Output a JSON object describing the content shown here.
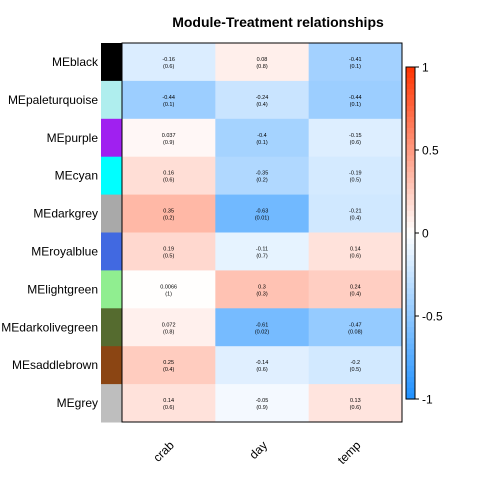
{
  "chart_data": {
    "type": "heatmap",
    "title": "Module-Treatment relationships",
    "xlabel": "",
    "ylabel": "",
    "columns": [
      "crab",
      "day",
      "temp"
    ],
    "rows": [
      {
        "name": "MEblack",
        "color": "#000000",
        "cells": [
          {
            "r": -0.16,
            "p": "(0.6)"
          },
          {
            "r": 0.08,
            "p": "(0.8)"
          },
          {
            "r": -0.41,
            "p": "(0.1)"
          }
        ]
      },
      {
        "name": "MEpaleturquoise",
        "color": "#AFEEEE",
        "cells": [
          {
            "r": -0.44,
            "p": "(0.1)"
          },
          {
            "r": -0.24,
            "p": "(0.4)"
          },
          {
            "r": -0.44,
            "p": "(0.1)"
          }
        ]
      },
      {
        "name": "MEpurple",
        "color": "#A020F0",
        "cells": [
          {
            "r": 0.037,
            "p": "(0.9)"
          },
          {
            "r": -0.4,
            "p": "(0.1)"
          },
          {
            "r": -0.15,
            "p": "(0.6)"
          }
        ]
      },
      {
        "name": "MEcyan",
        "color": "#00FFFF",
        "cells": [
          {
            "r": 0.16,
            "p": "(0.6)"
          },
          {
            "r": -0.35,
            "p": "(0.2)"
          },
          {
            "r": -0.19,
            "p": "(0.5)"
          }
        ]
      },
      {
        "name": "MEdarkgrey",
        "color": "#A9A9A9",
        "cells": [
          {
            "r": 0.35,
            "p": "(0.2)"
          },
          {
            "r": -0.63,
            "p": "(0.01)"
          },
          {
            "r": -0.21,
            "p": "(0.4)"
          }
        ]
      },
      {
        "name": "MEroyalblue",
        "color": "#4169E1",
        "cells": [
          {
            "r": 0.19,
            "p": "(0.5)"
          },
          {
            "r": -0.11,
            "p": "(0.7)"
          },
          {
            "r": 0.14,
            "p": "(0.6)"
          }
        ]
      },
      {
        "name": "MElightgreen",
        "color": "#90EE90",
        "cells": [
          {
            "r": 0.0066,
            "p": "(1)"
          },
          {
            "r": 0.3,
            "p": "(0.3)"
          },
          {
            "r": 0.24,
            "p": "(0.4)"
          }
        ]
      },
      {
        "name": "MEdarkolivegreen",
        "color": "#556B2F",
        "cells": [
          {
            "r": 0.072,
            "p": "(0.8)"
          },
          {
            "r": -0.61,
            "p": "(0.02)"
          },
          {
            "r": -0.47,
            "p": "(0.08)"
          }
        ]
      },
      {
        "name": "MEsaddlebrown",
        "color": "#8B4513",
        "cells": [
          {
            "r": 0.25,
            "p": "(0.4)"
          },
          {
            "r": -0.14,
            "p": "(0.6)"
          },
          {
            "r": -0.2,
            "p": "(0.5)"
          }
        ]
      },
      {
        "name": "MEgrey",
        "color": "#BEBEBE",
        "cells": [
          {
            "r": 0.14,
            "p": "(0.6)"
          },
          {
            "r": -0.05,
            "p": "(0.9)"
          },
          {
            "r": 0.13,
            "p": "(0.6)"
          }
        ]
      }
    ],
    "color_scale": {
      "min": -1,
      "max": 1,
      "min_color": "#1E90FF",
      "mid_color": "#FFFFFF",
      "max_color": "#FF3300",
      "ticks": [
        1,
        0.5,
        0,
        -0.5,
        -1
      ],
      "tick_labels": [
        "1",
        "0.5",
        "0",
        "-0.5",
        "-1"
      ]
    },
    "legend": "right",
    "grid": false
  }
}
